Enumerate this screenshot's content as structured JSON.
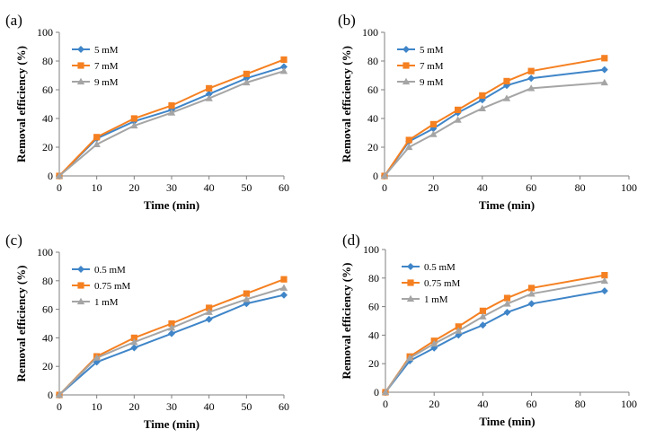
{
  "chart_data": [
    {
      "type": "line",
      "panel_label": "(a)",
      "xlabel": "Time (min)",
      "ylabel": "Removal efficiency (%)",
      "xlim": [
        0,
        60
      ],
      "ylim": [
        0,
        100
      ],
      "xticks": [
        0,
        10,
        20,
        30,
        40,
        50,
        60
      ],
      "yticks": [
        0,
        20,
        40,
        60,
        80,
        100
      ],
      "grid": false,
      "legend": "top-left",
      "x": [
        0,
        10,
        20,
        30,
        40,
        50,
        60
      ],
      "series": [
        {
          "name": "5 mM",
          "values": [
            0,
            26,
            38,
            46,
            57,
            68,
            76
          ],
          "color": "#3f85c8",
          "marker": "diamond"
        },
        {
          "name": "7 mM",
          "values": [
            0,
            27,
            40,
            49,
            61,
            71,
            81
          ],
          "color": "#f58021",
          "marker": "square"
        },
        {
          "name": "9 mM",
          "values": [
            0,
            22,
            35,
            44,
            54,
            65,
            73
          ],
          "color": "#a5a5a5",
          "marker": "triangle"
        }
      ]
    },
    {
      "type": "line",
      "panel_label": "(b)",
      "xlabel": "Time (min)",
      "ylabel": "Removal efficiency (%)",
      "xlim": [
        0,
        100
      ],
      "ylim": [
        0,
        100
      ],
      "xticks": [
        0,
        20,
        40,
        60,
        80,
        100
      ],
      "yticks": [
        0,
        20,
        40,
        60,
        80,
        100
      ],
      "grid": false,
      "legend": "top-left",
      "x": [
        0,
        10,
        20,
        30,
        40,
        50,
        60,
        90
      ],
      "series": [
        {
          "name": "5 mM",
          "values": [
            0,
            24,
            33,
            44,
            53,
            63,
            68,
            74
          ],
          "color": "#3f85c8",
          "marker": "diamond"
        },
        {
          "name": "7 mM",
          "values": [
            0,
            25,
            36,
            46,
            56,
            66,
            73,
            82
          ],
          "color": "#f58021",
          "marker": "square"
        },
        {
          "name": "9 mM",
          "values": [
            0,
            20,
            29,
            39,
            47,
            54,
            61,
            65
          ],
          "color": "#a5a5a5",
          "marker": "triangle"
        }
      ]
    },
    {
      "type": "line",
      "panel_label": "(c)",
      "xlabel": "Time (min)",
      "ylabel": "Removal efficiency (%)",
      "xlim": [
        0,
        60
      ],
      "ylim": [
        0,
        100
      ],
      "xticks": [
        0,
        10,
        20,
        30,
        40,
        50,
        60
      ],
      "yticks": [
        0,
        20,
        40,
        60,
        80,
        100
      ],
      "grid": false,
      "legend": "top-left",
      "x": [
        0,
        10,
        20,
        30,
        40,
        50,
        60
      ],
      "series": [
        {
          "name": "0.5 mM",
          "values": [
            0,
            23,
            33,
            43,
            53,
            64,
            70
          ],
          "color": "#3f85c8",
          "marker": "diamond"
        },
        {
          "name": "0.75 mM",
          "values": [
            0,
            27,
            40,
            50,
            61,
            71,
            81
          ],
          "color": "#f58021",
          "marker": "square"
        },
        {
          "name": "1 mM",
          "values": [
            0,
            26,
            37,
            47,
            58,
            67,
            75
          ],
          "color": "#a5a5a5",
          "marker": "triangle"
        }
      ]
    },
    {
      "type": "line",
      "panel_label": "(d)",
      "xlabel": "Time (min)",
      "ylabel": "Removal efficiency (%)",
      "xlim": [
        0,
        100
      ],
      "ylim": [
        0,
        100
      ],
      "xticks": [
        0,
        20,
        40,
        60,
        80,
        100
      ],
      "yticks": [
        0,
        20,
        40,
        60,
        80,
        100
      ],
      "grid": false,
      "legend": "top-left",
      "x": [
        0,
        10,
        20,
        30,
        40,
        50,
        60,
        90
      ],
      "series": [
        {
          "name": "0.5 mM",
          "values": [
            0,
            22,
            31,
            40,
            47,
            56,
            62,
            71
          ],
          "color": "#3f85c8",
          "marker": "diamond"
        },
        {
          "name": "0.75 mM",
          "values": [
            0,
            25,
            36,
            46,
            57,
            66,
            73,
            82
          ],
          "color": "#f58021",
          "marker": "square"
        },
        {
          "name": "1 mM",
          "values": [
            0,
            24,
            34,
            43,
            53,
            62,
            69,
            78
          ],
          "color": "#a5a5a5",
          "marker": "triangle"
        }
      ]
    }
  ]
}
